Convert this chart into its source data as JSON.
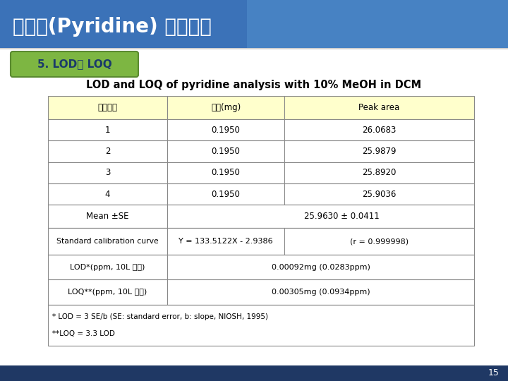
{
  "title": "피리딘(Pyridine) 분석방법",
  "subtitle": "5. LOD와 LOQ",
  "table_title": "LOD and LOQ of pyridine analysis with 10% MeOH in DCM",
  "header": [
    "측정횟수",
    "농도(mg)",
    "Peak area"
  ],
  "rows": [
    [
      "1",
      "0.1950",
      "26.0683"
    ],
    [
      "2",
      "0.1950",
      "25.9879"
    ],
    [
      "3",
      "0.1950",
      "25.8920"
    ],
    [
      "4",
      "0.1950",
      "25.9036"
    ]
  ],
  "mean_se_label": "Mean ±SE",
  "mean_se_value": "25.9630 ± 0.0411",
  "calib_label": "Standard calibration curve",
  "calib_eq": "Y = 133.5122X - 2.9386",
  "calib_r": "(r = 0.999998)",
  "lod_label": "LOD*(ppm, 10L 기준)",
  "lod_value": "0.00092mg (0.0283ppm)",
  "loq_label": "LOQ**(ppm, 10L 기준)",
  "loq_value": "0.00305mg (0.0934ppm)",
  "footnote1": "* LOD = 3 SE/b (SE: standard error, b: slope, NIOSH, 1995)",
  "footnote2": "**LOQ = 3.3 LOD",
  "page_number": "15",
  "header_bg": "#FFFFCC",
  "table_border": "#888888",
  "title_bg": "#3B72B8",
  "subtitle_bg": "#7DB642",
  "subtitle_text": "#1A3A6A",
  "bottom_bar": "#1F3864",
  "title_text": "#FFFFFF"
}
